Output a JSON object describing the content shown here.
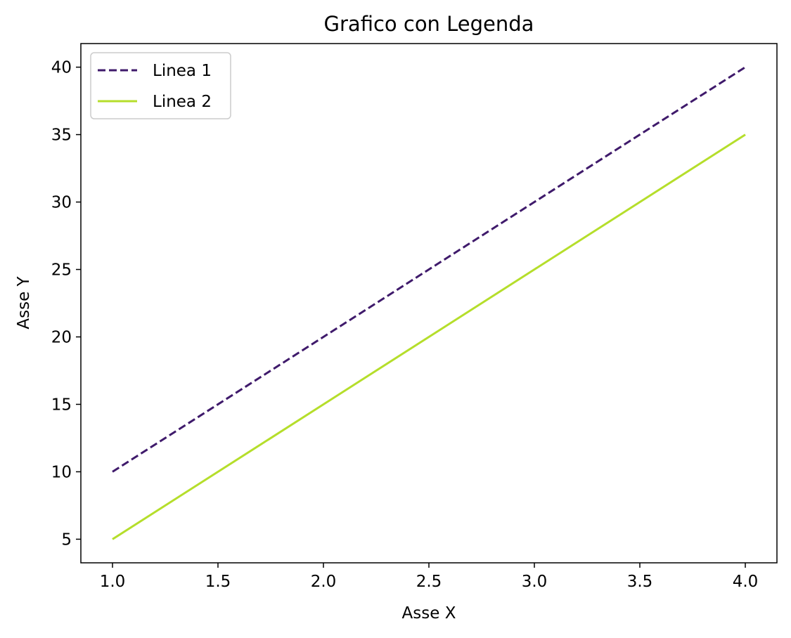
{
  "chart_data": {
    "type": "line",
    "title": "Grafico con Legenda",
    "xlabel": "Asse X",
    "ylabel": "Asse Y",
    "x": [
      1,
      2,
      3,
      4
    ],
    "xlim": [
      0.85,
      4.15
    ],
    "ylim": [
      3.25,
      41.75
    ],
    "xticks": [
      1.0,
      1.5,
      2.0,
      2.5,
      3.0,
      3.5,
      4.0
    ],
    "xtick_labels": [
      "1.0",
      "1.5",
      "2.0",
      "2.5",
      "3.0",
      "3.5",
      "4.0"
    ],
    "yticks": [
      5,
      10,
      15,
      20,
      25,
      30,
      35,
      40
    ],
    "ytick_labels": [
      "5",
      "10",
      "15",
      "20",
      "25",
      "30",
      "35",
      "40"
    ],
    "grid": false,
    "legend_position": "upper-left",
    "series": [
      {
        "name": "Linea 1",
        "values": [
          10,
          20,
          30,
          40
        ],
        "color": "#3f1a6b",
        "style": "dashed"
      },
      {
        "name": "Linea 2",
        "values": [
          5,
          15,
          25,
          35
        ],
        "color": "#b5de2b",
        "style": "solid"
      }
    ]
  }
}
